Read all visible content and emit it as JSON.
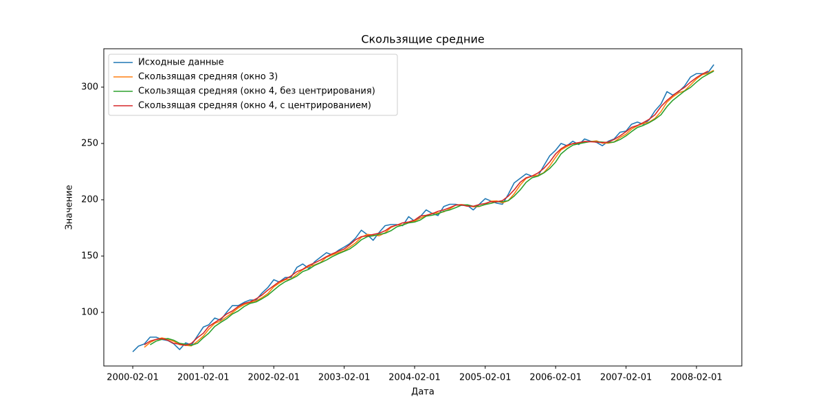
{
  "chart_data": {
    "type": "line",
    "title": "Скользящие средние",
    "xlabel": "Дата",
    "ylabel": "Значение",
    "x": [
      "2000-02-01",
      "2000-03-01",
      "2000-04-01",
      "2000-05-01",
      "2000-06-01",
      "2000-07-01",
      "2000-08-01",
      "2000-09-01",
      "2000-10-01",
      "2000-11-01",
      "2000-12-01",
      "2001-01-01",
      "2001-02-01",
      "2001-03-01",
      "2001-04-01",
      "2001-05-01",
      "2001-06-01",
      "2001-07-01",
      "2001-08-01",
      "2001-09-01",
      "2001-10-01",
      "2001-11-01",
      "2001-12-01",
      "2002-01-01",
      "2002-02-01",
      "2002-03-01",
      "2002-04-01",
      "2002-05-01",
      "2002-06-01",
      "2002-07-01",
      "2002-08-01",
      "2002-09-01",
      "2002-10-01",
      "2002-11-01",
      "2002-12-01",
      "2003-01-01",
      "2003-02-01",
      "2003-03-01",
      "2003-04-01",
      "2003-05-01",
      "2003-06-01",
      "2003-07-01",
      "2003-08-01",
      "2003-09-01",
      "2003-10-01",
      "2003-11-01",
      "2003-12-01",
      "2004-01-01",
      "2004-02-01",
      "2004-03-01",
      "2004-04-01",
      "2004-05-01",
      "2004-06-01",
      "2004-07-01",
      "2004-08-01",
      "2004-09-01",
      "2004-10-01",
      "2004-11-01",
      "2004-12-01",
      "2005-01-01",
      "2005-02-01",
      "2005-03-01",
      "2005-04-01",
      "2005-05-01",
      "2005-06-01",
      "2005-07-01",
      "2005-08-01",
      "2005-09-01",
      "2005-10-01",
      "2005-11-01",
      "2005-12-01",
      "2006-01-01",
      "2006-02-01",
      "2006-03-01",
      "2006-04-01",
      "2006-05-01",
      "2006-06-01",
      "2006-07-01",
      "2006-08-01",
      "2006-09-01",
      "2006-10-01",
      "2006-11-01",
      "2006-12-01",
      "2007-01-01",
      "2007-02-01",
      "2007-03-01",
      "2007-04-01",
      "2007-05-01",
      "2007-06-01",
      "2007-07-01",
      "2007-08-01",
      "2007-09-01",
      "2007-10-01",
      "2007-11-01",
      "2007-12-01",
      "2008-01-01",
      "2008-02-01",
      "2008-03-01",
      "2008-04-01",
      "2008-05-01"
    ],
    "series": [
      {
        "name": "Исходные данные",
        "color": "#1f77b4",
        "values": [
          65,
          70,
          72,
          78,
          78,
          76,
          75,
          72,
          67,
          73,
          71,
          79,
          87,
          89,
          95,
          93,
          100,
          106,
          106,
          109,
          111,
          111,
          117,
          122,
          129,
          127,
          131,
          131,
          140,
          143,
          139,
          145,
          149,
          153,
          151,
          155,
          158,
          161,
          166,
          173,
          169,
          164,
          171,
          177,
          178,
          178,
          177,
          185,
          181,
          185,
          191,
          188,
          186,
          194,
          196,
          196,
          195,
          195,
          191,
          196,
          201,
          199,
          197,
          196,
          205,
          215,
          219,
          223,
          221,
          221,
          230,
          239,
          244,
          250,
          248,
          252,
          249,
          254,
          252,
          251,
          248,
          252,
          254,
          260,
          261,
          267,
          269,
          267,
          271,
          279,
          285,
          296,
          293,
          296,
          301,
          309,
          312,
          312,
          313,
          320
        ]
      },
      {
        "name": "Скользящая средняя (окно 3)",
        "color": "#ff7f0e",
        "values": [
          null,
          null,
          69.0,
          73.3,
          76.0,
          77.3,
          76.3,
          74.3,
          71.3,
          70.7,
          70.3,
          74.3,
          79.0,
          85.0,
          90.3,
          92.3,
          96.0,
          99.7,
          104.0,
          107.0,
          108.7,
          110.3,
          113.0,
          116.7,
          122.7,
          126.0,
          129.0,
          129.7,
          134.0,
          138.0,
          140.7,
          142.3,
          144.3,
          149.0,
          151.0,
          153.0,
          154.7,
          158.0,
          161.7,
          166.7,
          169.3,
          168.7,
          168.0,
          170.7,
          175.3,
          177.7,
          177.7,
          180.0,
          181.0,
          183.7,
          185.7,
          188.0,
          188.3,
          189.3,
          192.0,
          195.3,
          195.7,
          195.3,
          193.7,
          194.0,
          196.0,
          198.7,
          199.0,
          197.3,
          199.3,
          205.3,
          213.0,
          219.0,
          221.0,
          221.7,
          224.0,
          230.0,
          237.7,
          244.3,
          247.3,
          250.0,
          249.7,
          251.7,
          251.7,
          252.3,
          250.3,
          250.3,
          251.3,
          255.3,
          258.3,
          262.7,
          265.7,
          267.7,
          269.0,
          272.3,
          278.3,
          286.7,
          291.3,
          295.0,
          296.7,
          302.0,
          307.3,
          311.0,
          312.3,
          315.0
        ]
      },
      {
        "name": "Скользящая средняя (окно 4, без центрирования)",
        "color": "#2ca02c",
        "values": [
          null,
          null,
          null,
          71.25,
          74.5,
          76.0,
          76.75,
          75.25,
          72.5,
          71.75,
          70.75,
          72.5,
          77.5,
          81.5,
          87.5,
          91.0,
          94.25,
          98.5,
          101.25,
          105.25,
          108.0,
          109.25,
          112.0,
          115.25,
          119.75,
          123.75,
          127.25,
          129.5,
          132.25,
          136.25,
          138.25,
          141.75,
          144.0,
          146.5,
          149.5,
          152.0,
          154.25,
          156.25,
          160.0,
          164.5,
          167.25,
          168.0,
          169.25,
          170.25,
          172.5,
          176.0,
          177.5,
          179.5,
          180.25,
          182.0,
          185.5,
          186.25,
          187.5,
          189.75,
          191.0,
          193.0,
          195.25,
          195.5,
          194.25,
          194.25,
          195.75,
          196.75,
          198.25,
          198.25,
          199.25,
          203.25,
          208.75,
          215.5,
          219.5,
          221.0,
          223.75,
          227.75,
          233.5,
          240.75,
          245.25,
          248.5,
          249.75,
          250.75,
          251.75,
          251.5,
          251.25,
          250.75,
          251.25,
          253.5,
          256.75,
          260.5,
          264.25,
          266.0,
          268.5,
          271.5,
          275.5,
          282.75,
          288.25,
          292.5,
          296.5,
          299.75,
          304.5,
          308.5,
          311.5,
          314.25
        ]
      },
      {
        "name": "Скользящая средняя (окно 4, с центрированием)",
        "color": "#d62728",
        "values": [
          null,
          null,
          71.25,
          74.5,
          76.0,
          76.75,
          75.25,
          72.5,
          71.75,
          70.75,
          72.5,
          77.5,
          81.5,
          87.5,
          91.0,
          94.25,
          98.5,
          101.25,
          105.25,
          108.0,
          109.25,
          112.0,
          115.25,
          119.75,
          123.75,
          127.25,
          129.5,
          132.25,
          136.25,
          138.25,
          141.75,
          144.0,
          146.5,
          149.5,
          152.0,
          154.25,
          156.25,
          160.0,
          164.5,
          167.25,
          168.0,
          169.25,
          170.25,
          172.5,
          176.0,
          177.5,
          179.5,
          180.25,
          182.0,
          185.5,
          186.25,
          187.5,
          189.75,
          191.0,
          193.0,
          195.25,
          195.5,
          194.25,
          194.25,
          195.75,
          196.75,
          198.25,
          198.25,
          199.25,
          203.25,
          208.75,
          215.5,
          219.5,
          221.0,
          223.75,
          227.75,
          233.5,
          240.75,
          245.25,
          248.5,
          249.75,
          250.75,
          251.75,
          251.5,
          251.25,
          250.75,
          251.25,
          253.5,
          256.75,
          260.5,
          264.25,
          266.0,
          268.5,
          271.5,
          275.5,
          282.75,
          288.25,
          292.5,
          296.5,
          299.75,
          304.5,
          308.5,
          311.5,
          314.25,
          null
        ]
      }
    ],
    "xlim": [
      "1999-09-04",
      "2008-09-23"
    ],
    "xticks": [
      "2000-02-01",
      "2001-02-01",
      "2002-02-01",
      "2003-02-01",
      "2004-02-01",
      "2005-02-01",
      "2006-02-01",
      "2007-02-01",
      "2008-02-01"
    ],
    "ylim": [
      52.4,
      334.1
    ],
    "yticks": [
      100,
      150,
      200,
      250,
      300
    ],
    "grid": false,
    "legend": "upper left"
  }
}
